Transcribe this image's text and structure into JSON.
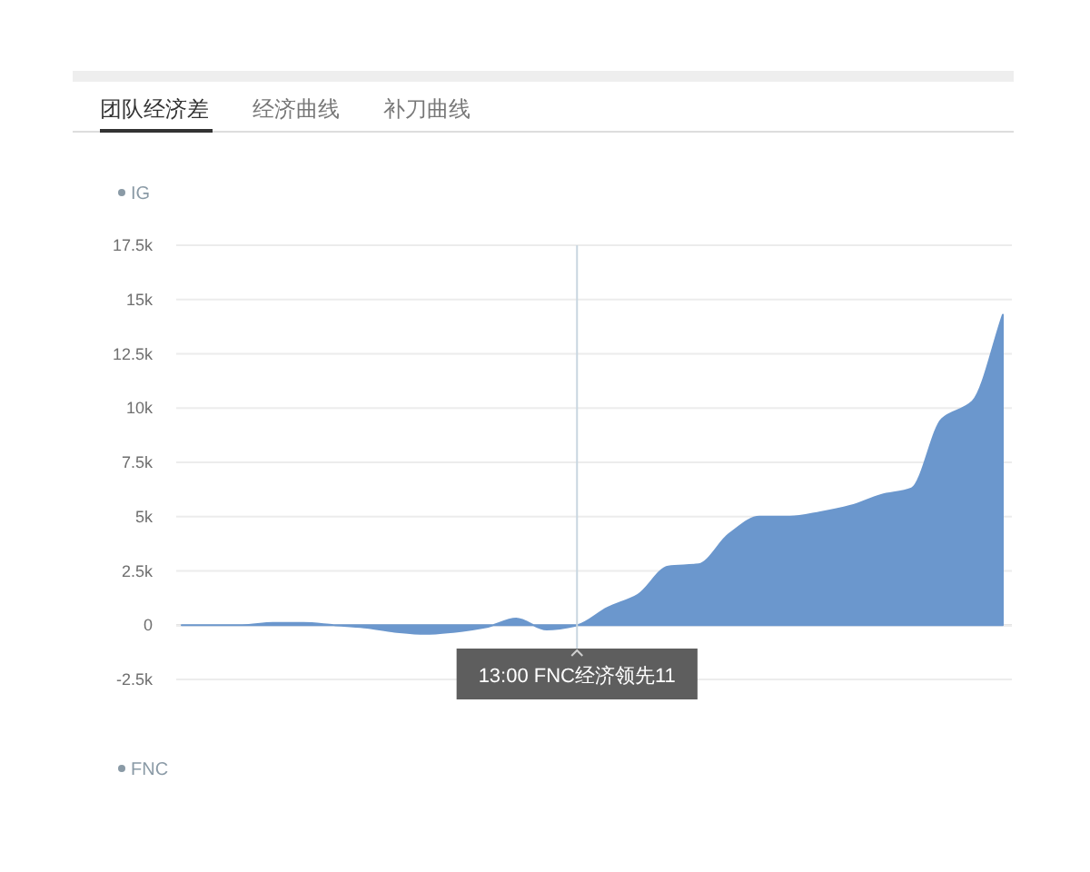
{
  "chart_data": {
    "type": "area",
    "title": "团队经济差",
    "annotations": [
      "经济曲线",
      "补刀曲线",
      "IG",
      {
        "text": "13:00 FNC经济领先11",
        "y": -11
      },
      "FNC"
    ],
    "categories": [
      null,
      null,
      null,
      null,
      null,
      null,
      null,
      null,
      null,
      null,
      null,
      null,
      null,
      null,
      null,
      null,
      null,
      null,
      null,
      null,
      null,
      null,
      null,
      null,
      null,
      null,
      null,
      null
    ],
    "values": [
      0,
      0,
      0,
      100,
      100,
      0,
      -100,
      -300,
      -400,
      -300,
      -100,
      300,
      -200,
      -11,
      800,
      1400,
      2700,
      2800,
      4200,
      5000,
      5000,
      5200,
      5500,
      6000,
      6300,
      9500,
      10300,
      14300
    ],
    "color": "#6b97cd",
    "ylim": [
      -2500,
      17500
    ],
    "yticks": [
      {
        "value": -2500,
        "label": "-2.5k"
      },
      0,
      {
        "value": 2500,
        "label": "2.5k"
      },
      {
        "value": 5000,
        "label": "5k"
      },
      {
        "value": 7500,
        "label": "7.5k"
      },
      {
        "value": 10000,
        "label": "10k"
      },
      {
        "value": 12500,
        "label": "12.5k"
      },
      {
        "value": 15000,
        "label": "15k"
      },
      {
        "value": 17500,
        "label": "17.5k"
      }
    ],
    "tick_labels": "y",
    "grid": "y"
  }
}
